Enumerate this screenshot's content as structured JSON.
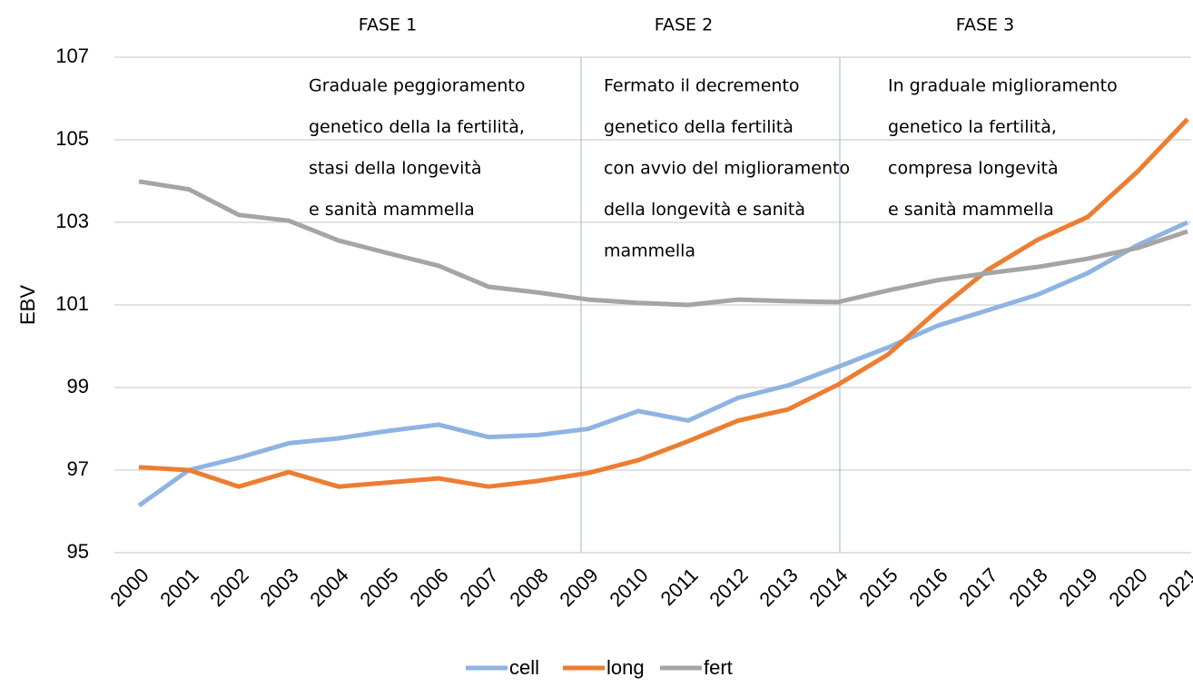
{
  "chart_data": {
    "type": "line",
    "y_label": "EBV",
    "categories": [
      "2000",
      "2001",
      "2002",
      "2003",
      "2004",
      "2005",
      "2006",
      "2007",
      "2008",
      "2009",
      "2010",
      "2011",
      "2012",
      "2013",
      "2014",
      "2015",
      "2016",
      "2017",
      "2018",
      "2019",
      "2020",
      "2021"
    ],
    "series": [
      {
        "name": "cell",
        "color": "#8eb4e3",
        "values": [
          96.14,
          97.0,
          97.3,
          97.65,
          97.77,
          97.95,
          98.1,
          97.8,
          97.85,
          98.0,
          98.43,
          98.2,
          98.75,
          99.05,
          99.5,
          99.97,
          100.5,
          100.87,
          101.25,
          101.77,
          102.45,
          103.0
        ]
      },
      {
        "name": "long",
        "color": "#ed7d31",
        "values": [
          97.07,
          97.0,
          96.6,
          96.95,
          96.6,
          96.7,
          96.8,
          96.6,
          96.74,
          96.93,
          97.24,
          97.7,
          98.2,
          98.47,
          99.07,
          99.8,
          100.87,
          101.85,
          102.58,
          103.13,
          104.23,
          105.5
        ]
      },
      {
        "name": "fert",
        "color": "#a5a5a5",
        "values": [
          103.99,
          103.8,
          103.18,
          103.04,
          102.56,
          102.25,
          101.95,
          101.44,
          101.3,
          101.13,
          101.05,
          101.0,
          101.13,
          101.09,
          101.07,
          101.35,
          101.6,
          101.77,
          101.92,
          102.12,
          102.38,
          102.78
        ]
      }
    ],
    "ylim": [
      95,
      107
    ],
    "yticks": [
      95,
      97,
      99,
      101,
      103,
      105,
      107
    ],
    "grid": true,
    "legend": "bottom",
    "annotations": [
      {
        "label": "FASE 1",
        "lines": [
          "Graduale peggioramento",
          "genetico della la fertilità,",
          "stasi della longevità",
          "e sanità mammella"
        ]
      },
      {
        "label": "FASE 2",
        "lines": [
          "Fermato il decremento",
          "genetico della fertilità",
          "con avvio del miglioramento",
          "della longevità e sanità",
          "mammella"
        ]
      },
      {
        "label": "FASE 3",
        "lines": [
          "In graduale miglioramento",
          "genetico la fertilità,",
          "compresa longevità",
          "e sanità mammella"
        ]
      }
    ]
  }
}
